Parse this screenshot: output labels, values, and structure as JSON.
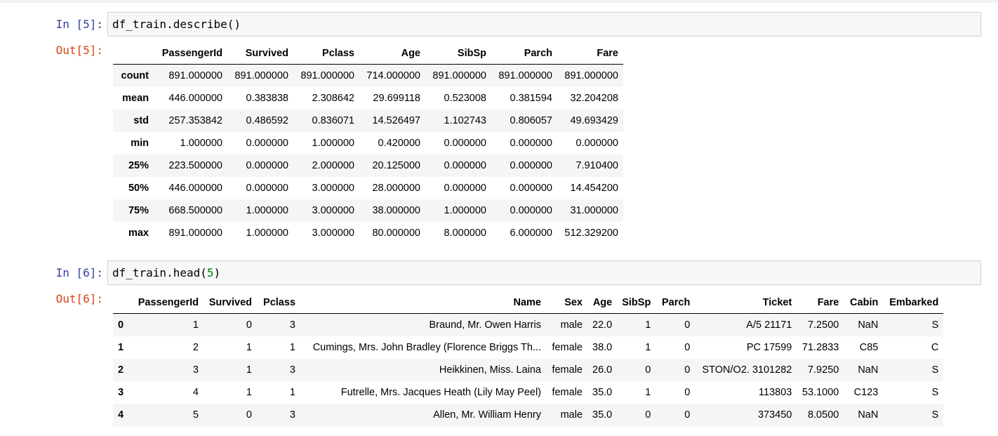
{
  "cells": [
    {
      "in_prompt": "In [5]:",
      "code": "df_train.describe()",
      "out_prompt": "Out[5]:",
      "table": {
        "columns": [
          "",
          "PassengerId",
          "Survived",
          "Pclass",
          "Age",
          "SibSp",
          "Parch",
          "Fare"
        ],
        "rows": [
          [
            "count",
            "891.000000",
            "891.000000",
            "891.000000",
            "714.000000",
            "891.000000",
            "891.000000",
            "891.000000"
          ],
          [
            "mean",
            "446.000000",
            "0.383838",
            "2.308642",
            "29.699118",
            "0.523008",
            "0.381594",
            "32.204208"
          ],
          [
            "std",
            "257.353842",
            "0.486592",
            "0.836071",
            "14.526497",
            "1.102743",
            "0.806057",
            "49.693429"
          ],
          [
            "min",
            "1.000000",
            "0.000000",
            "1.000000",
            "0.420000",
            "0.000000",
            "0.000000",
            "0.000000"
          ],
          [
            "25%",
            "223.500000",
            "0.000000",
            "2.000000",
            "20.125000",
            "0.000000",
            "0.000000",
            "7.910400"
          ],
          [
            "50%",
            "446.000000",
            "0.000000",
            "3.000000",
            "28.000000",
            "0.000000",
            "0.000000",
            "14.454200"
          ],
          [
            "75%",
            "668.500000",
            "1.000000",
            "3.000000",
            "38.000000",
            "1.000000",
            "0.000000",
            "31.000000"
          ],
          [
            "max",
            "891.000000",
            "1.000000",
            "3.000000",
            "80.000000",
            "8.000000",
            "6.000000",
            "512.329200"
          ]
        ]
      }
    },
    {
      "in_prompt": "In [6]:",
      "code_prefix": "df_train.head(",
      "code_arg": "5",
      "code_suffix": ")",
      "out_prompt": "Out[6]:",
      "table": {
        "columns": [
          "",
          "PassengerId",
          "Survived",
          "Pclass",
          "Name",
          "Sex",
          "Age",
          "SibSp",
          "Parch",
          "Ticket",
          "Fare",
          "Cabin",
          "Embarked"
        ],
        "rows": [
          [
            "0",
            "1",
            "0",
            "3",
            "Braund, Mr. Owen Harris",
            "male",
            "22.0",
            "1",
            "0",
            "A/5 21171",
            "7.2500",
            "NaN",
            "S"
          ],
          [
            "1",
            "2",
            "1",
            "1",
            "Cumings, Mrs. John Bradley (Florence Briggs Th...",
            "female",
            "38.0",
            "1",
            "0",
            "PC 17599",
            "71.2833",
            "C85",
            "C"
          ],
          [
            "2",
            "3",
            "1",
            "3",
            "Heikkinen, Miss. Laina",
            "female",
            "26.0",
            "0",
            "0",
            "STON/O2. 3101282",
            "7.9250",
            "NaN",
            "S"
          ],
          [
            "3",
            "4",
            "1",
            "1",
            "Futrelle, Mrs. Jacques Heath (Lily May Peel)",
            "female",
            "35.0",
            "1",
            "0",
            "113803",
            "53.1000",
            "C123",
            "S"
          ],
          [
            "4",
            "5",
            "0",
            "3",
            "Allen, Mr. William Henry",
            "male",
            "35.0",
            "0",
            "0",
            "373450",
            "8.0500",
            "NaN",
            "S"
          ]
        ]
      }
    }
  ]
}
